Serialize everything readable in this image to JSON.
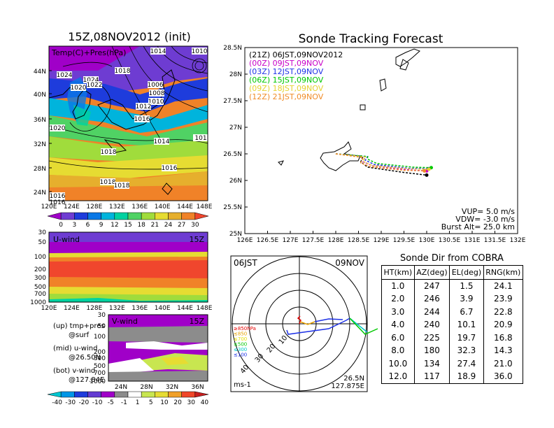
{
  "left_title": "15Z,08NOV2012 (init)",
  "map_label": "Temp(C)+Pres(hPa)",
  "pressure_labels": [
    "1014",
    "1010",
    "1018",
    "1024",
    "1024",
    "1022",
    "1020",
    "1006",
    "1008",
    "1010",
    "1012",
    "1016",
    "1020",
    "1018",
    "1014",
    "101",
    "1016",
    "1018",
    "1018",
    "1016",
    "1016"
  ],
  "lat_ticks": [
    "44N",
    "40N",
    "36N",
    "32N",
    "28N",
    "24N"
  ],
  "lon_ticks": [
    "120E",
    "124E",
    "128E",
    "132E",
    "136E",
    "140E",
    "144E",
    "148E"
  ],
  "temp_colorbar": {
    "labels": [
      "0",
      "3",
      "6",
      "9",
      "12",
      "15",
      "18",
      "21",
      "24",
      "27",
      "30"
    ],
    "colors": [
      "#a000c8",
      "#6e3cd2",
      "#1e3cdc",
      "#0a78e6",
      "#00b4dc",
      "#00d2a0",
      "#50d264",
      "#a0dc3c",
      "#e6dc32",
      "#e6af2d",
      "#f08228",
      "#f0462d"
    ]
  },
  "u_panel": {
    "label": "U-wind",
    "time": "15Z",
    "pres_ticks": [
      "30",
      "50",
      "100",
      "200",
      "300",
      "500",
      "700",
      "1000"
    ]
  },
  "v_panel": {
    "label": "V-wind",
    "time": "15Z",
    "pres_ticks": [
      "30",
      "50",
      "100",
      "200",
      "300",
      "500",
      "700",
      "1000"
    ],
    "lat_ticks": [
      "24N",
      "28N",
      "32N",
      "36N"
    ]
  },
  "legend_notes": [
    {
      "a": "(up) tmp+pres",
      "b": "@surf"
    },
    {
      "a": "(mid) u-wind",
      "b": "@26.50N"
    },
    {
      "a": "(bot) v-wind",
      "b": "@127.84E"
    }
  ],
  "wind_colorbar": {
    "labels": [
      "-40",
      "-30",
      "-20",
      "-10",
      "-5",
      "-1",
      "1",
      "5",
      "10",
      "20",
      "30",
      "40"
    ],
    "colors": [
      "#00c8d2",
      "#0096e6",
      "#1e3cdc",
      "#643cd2",
      "#a000c8",
      "#8c8c8c",
      "#ffffff",
      "#c8e650",
      "#e6dc32",
      "#f0a028",
      "#f04628",
      "#c81e1e"
    ]
  },
  "track_title": "Sonde Tracking Forecast",
  "track_lat_ticks": [
    "28.5N",
    "28N",
    "27.5N",
    "27N",
    "26.5N",
    "26N",
    "25.5N",
    "25N"
  ],
  "track_lon_ticks": [
    "126E",
    "126.5E",
    "127E",
    "127.5E",
    "128E",
    "128.5E",
    "129E",
    "129.5E",
    "130E",
    "130.5E",
    "131E",
    "131.5E",
    "132E"
  ],
  "track_legend": [
    {
      "text": "(21Z)  06JST,09NOV2012",
      "color": "#000000"
    },
    {
      "text": "(00Z)  09JST,09NOV",
      "color": "#c800c8"
    },
    {
      "text": "(03Z)  12JST,09NOV",
      "color": "#1e32e6"
    },
    {
      "text": "(06Z)  15JST,09NOV",
      "color": "#00c800"
    },
    {
      "text": "(09Z)  18JST,09NOV",
      "color": "#e6d232"
    },
    {
      "text": "(12Z)  21JST,09NOV",
      "color": "#f08c28"
    }
  ],
  "track_info": [
    "VUP= 5.0 m/s",
    "VDW= -3.0 m/s",
    "Burst Alt= 25.0 km"
  ],
  "polar": {
    "time": "06JST",
    "date": "09NOV",
    "ring_labels": [
      "10",
      "20",
      "30",
      "40"
    ],
    "unit": "ms-1",
    "lat": "26.5N",
    "lon": "127.875E",
    "legend": [
      {
        "t": "≥850hPa",
        "c": "#e60000"
      },
      {
        "t": "≤850",
        "c": "#e6a000"
      },
      {
        "t": "≤700",
        "c": "#e6dc00"
      },
      {
        "t": "≤500",
        "c": "#00c800"
      },
      {
        "t": "≤300",
        "c": "#00c8c8"
      },
      {
        "t": "≤100",
        "c": "#1e32e6"
      }
    ]
  },
  "table_title": "Sonde Dir from COBRA",
  "table_headers": [
    "HT(km)",
    "AZ(deg)",
    "EL(deg)",
    "RNG(km)"
  ],
  "table_rows": [
    [
      "1.0",
      "247",
      "1.5",
      "24.1"
    ],
    [
      "2.0",
      "246",
      "3.9",
      "23.9"
    ],
    [
      "3.0",
      "244",
      "6.7",
      "22.8"
    ],
    [
      "4.0",
      "240",
      "10.1",
      "20.9"
    ],
    [
      "6.0",
      "225",
      "19.7",
      "16.8"
    ],
    [
      "8.0",
      "180",
      "32.3",
      "14.3"
    ],
    [
      "10.0",
      "134",
      "27.4",
      "21.0"
    ],
    [
      "12.0",
      "117",
      "18.9",
      "36.0"
    ]
  ],
  "chart_data": {
    "type": "line",
    "title": "Sonde Tracking Forecast",
    "xlim": [
      126,
      132
    ],
    "ylim": [
      25,
      28.5
    ],
    "series": [
      {
        "name": "(21Z)  06JST,09NOV2012",
        "x": [
          128.0,
          128.6,
          128.55,
          128.7,
          129.5,
          130.0
        ],
        "y": [
          26.5,
          26.45,
          26.35,
          26.25,
          26.15,
          26.1
        ]
      },
      {
        "name": "(00Z)  09JST,09NOV",
        "x": [
          128.0,
          128.65,
          128.6,
          128.8,
          129.6,
          130.0
        ],
        "y": [
          26.5,
          26.45,
          26.35,
          26.28,
          26.2,
          26.18
        ]
      },
      {
        "name": "(03Z)  12JST,09NOV",
        "x": [
          128.0,
          128.7,
          128.65,
          128.85,
          129.6,
          130.05
        ],
        "y": [
          26.5,
          26.45,
          26.38,
          26.3,
          26.23,
          26.22
        ]
      },
      {
        "name": "(06Z)  15JST,09NOV",
        "x": [
          128.0,
          128.7,
          128.7,
          128.9,
          129.7,
          130.1
        ],
        "y": [
          26.5,
          26.45,
          26.4,
          26.32,
          26.25,
          26.24
        ]
      },
      {
        "name": "(09Z)  18JST,09NOV",
        "x": [
          128.0,
          128.65,
          128.6,
          128.8,
          129.6,
          130.05
        ],
        "y": [
          26.5,
          26.44,
          26.36,
          26.28,
          26.22,
          26.21
        ]
      },
      {
        "name": "(12Z)  21JST,09NOV",
        "x": [
          128.0,
          128.6,
          128.55,
          128.75,
          129.5,
          129.95
        ],
        "y": [
          26.5,
          26.43,
          26.33,
          26.26,
          26.19,
          26.18
        ]
      }
    ]
  }
}
